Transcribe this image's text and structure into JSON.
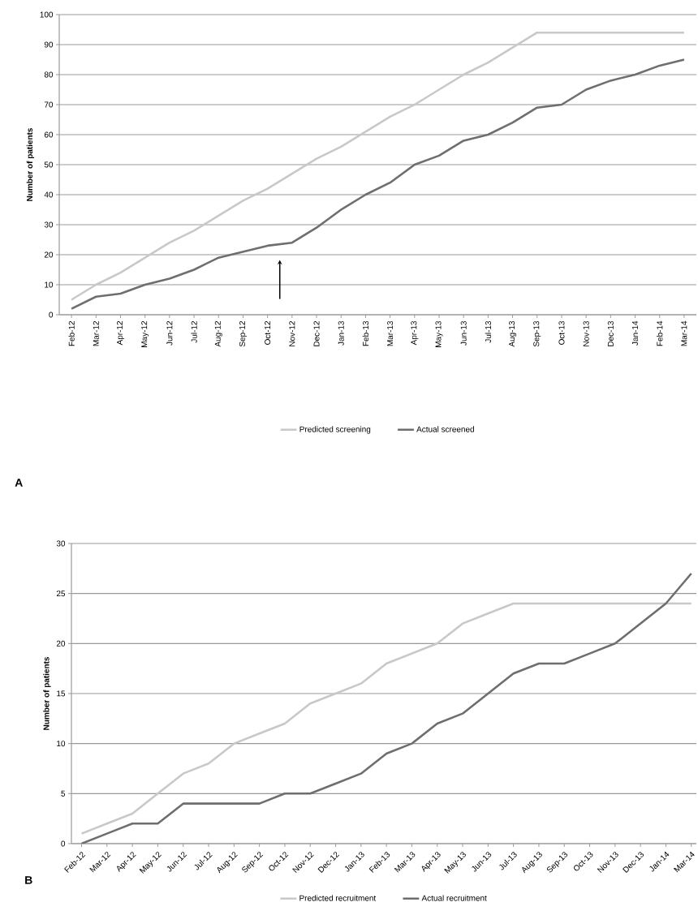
{
  "chart_data": [
    {
      "type": "line",
      "ylabel": "Number of patients",
      "categories": [
        "Feb-12",
        "Mar-12",
        "Apr-12",
        "May-12",
        "Jun-12",
        "Jul-12",
        "Aug-12",
        "Sep-12",
        "Oct-12",
        "Nov-12",
        "Dec-12",
        "Jan-13",
        "Feb-13",
        "Mar-13",
        "Apr-13",
        "May-13",
        "Jun-13",
        "Jul-13",
        "Aug-13",
        "Sep-13",
        "Oct-13",
        "Nov-13",
        "Dec-13",
        "Jan-14",
        "Feb-14",
        "Mar-14"
      ],
      "series": [
        {
          "name": "Predicted screening",
          "color": "#c8c8c8",
          "values": [
            5,
            10,
            14,
            19,
            24,
            28,
            33,
            38,
            42,
            47,
            52,
            56,
            61,
            66,
            70,
            75,
            80,
            84,
            89,
            94,
            94,
            94,
            94,
            94,
            94,
            94
          ]
        },
        {
          "name": "Actual screened",
          "color": "#6e6e6e",
          "values": [
            2,
            6,
            7,
            10,
            12,
            15,
            19,
            21,
            23,
            24,
            29,
            35,
            40,
            44,
            50,
            53,
            58,
            60,
            64,
            69,
            70,
            75,
            78,
            80,
            83,
            85
          ]
        }
      ],
      "ylim": [
        0,
        100
      ],
      "yticks": [
        0,
        10,
        20,
        30,
        40,
        50,
        60,
        70,
        80,
        90,
        100
      ],
      "grid": "y",
      "legend": "bottom",
      "annotations": [
        "A"
      ]
    },
    {
      "type": "line",
      "ylabel": "Number of patients",
      "categories": [
        "Feb-12",
        "Mar-12",
        "Apr-12",
        "May-12",
        "Jun-12",
        "Jul-12",
        "Aug-12",
        "Sep-12",
        "Oct-12",
        "Nov-12",
        "Dec-12",
        "Jan-13",
        "Feb-13",
        "Mar-13",
        "Apr-13",
        "May-13",
        "Jun-13",
        "Jul-13",
        "Aug-13",
        "Sep-13",
        "Oct-13",
        "Nov-13",
        "Dec-13",
        "Jan-14",
        "Mar-14"
      ],
      "series": [
        {
          "name": "Predicted recruitment",
          "color": "#c8c8c8",
          "values": [
            1,
            2,
            3,
            5,
            7,
            8,
            10,
            11,
            12,
            14,
            15,
            16,
            18,
            19,
            20,
            22,
            23,
            24,
            24,
            24,
            24,
            24,
            24,
            24,
            24
          ]
        },
        {
          "name": "Actual recruitment",
          "color": "#6e6e6e",
          "values": [
            0,
            1,
            2,
            2,
            4,
            4,
            4,
            4,
            5,
            5,
            6,
            7,
            9,
            10,
            12,
            13,
            15,
            17,
            18,
            18,
            19,
            20,
            22,
            24,
            27
          ]
        }
      ],
      "ylim": [
        0,
        30
      ],
      "yticks": [
        0,
        5,
        10,
        15,
        20,
        25,
        30
      ],
      "grid": "y",
      "legend": "bottom",
      "annotations": [
        "B"
      ]
    }
  ]
}
